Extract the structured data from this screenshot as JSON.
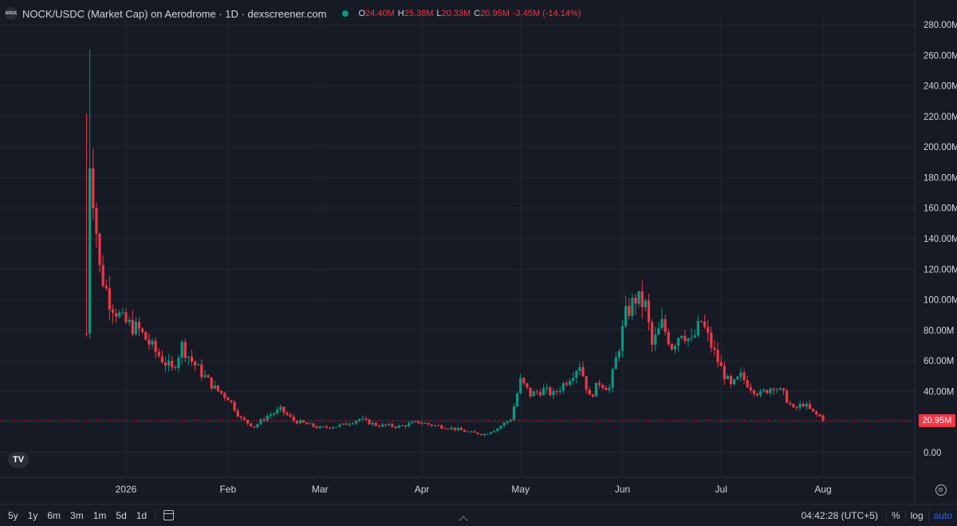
{
  "header": {
    "logo_text": "NOCK",
    "title": "NOCK/USDC (Market Cap) on Aerodrome · 1D · dexscreener.com",
    "ohlc": {
      "o_label": "O",
      "o_value": "24.40M",
      "h_label": "H",
      "h_value": "25.38M",
      "l_label": "L",
      "l_value": "20.33M",
      "c_label": "C",
      "c_value": "20.95M",
      "change": "-3.45M (-14.14%)"
    }
  },
  "colors": {
    "up": "#089981",
    "down": "#f23645",
    "background": "#161a25",
    "grid": "#222631",
    "text": "#d1d4dc"
  },
  "chart_data": {
    "type": "candlestick",
    "y_axis": {
      "min": 0,
      "max": 280,
      "unit": "M",
      "ticks": [
        0,
        20,
        40,
        60,
        80,
        100,
        120,
        140,
        160,
        180,
        200,
        220,
        240,
        260,
        280
      ],
      "tick_labels": [
        "0.00",
        "20.00M",
        "40.00M",
        "60.00M",
        "80.00M",
        "100.00M",
        "120.00M",
        "140.00M",
        "160.00M",
        "180.00M",
        "200.00M",
        "220.00M",
        "240.00M",
        "260.00M",
        "280.00M"
      ]
    },
    "x_axis": {
      "tick_labels": [
        "2026",
        "Feb",
        "Mar",
        "Apr",
        "May",
        "Jun",
        "Jul",
        "Aug"
      ],
      "tick_dates": [
        "2026-01-01",
        "2026-02-01",
        "2026-03-01",
        "2026-04-01",
        "2026-05-01",
        "2026-06-01",
        "2026-07-01",
        "2026-08-01"
      ]
    },
    "grid": true,
    "last_price_label": "20.95M",
    "last_price": 20.95,
    "series_points": [
      {
        "date": "2025-12-20",
        "close": 78
      },
      {
        "date": "2025-12-21",
        "close": 193
      },
      {
        "date": "2025-12-22",
        "close": 170
      },
      {
        "date": "2025-12-24",
        "close": 120
      },
      {
        "date": "2025-12-27",
        "close": 100
      },
      {
        "date": "2025-12-31",
        "close": 86
      },
      {
        "date": "2026-01-05",
        "close": 80
      },
      {
        "date": "2026-01-10",
        "close": 66
      },
      {
        "date": "2026-01-15",
        "close": 54
      },
      {
        "date": "2026-01-18",
        "close": 70
      },
      {
        "date": "2026-01-21",
        "close": 60
      },
      {
        "date": "2026-01-24",
        "close": 52
      },
      {
        "date": "2026-01-28",
        "close": 42
      },
      {
        "date": "2026-02-01",
        "close": 36
      },
      {
        "date": "2026-02-05",
        "close": 22
      },
      {
        "date": "2026-02-09",
        "close": 17
      },
      {
        "date": "2026-02-13",
        "close": 24
      },
      {
        "date": "2026-02-17",
        "close": 28
      },
      {
        "date": "2026-02-21",
        "close": 21
      },
      {
        "date": "2026-03-01",
        "close": 16
      },
      {
        "date": "2026-03-08",
        "close": 18
      },
      {
        "date": "2026-03-13",
        "close": 22
      },
      {
        "date": "2026-03-18",
        "close": 18
      },
      {
        "date": "2026-03-25",
        "close": 17
      },
      {
        "date": "2026-03-31",
        "close": 20
      },
      {
        "date": "2026-04-04",
        "close": 18
      },
      {
        "date": "2026-04-10",
        "close": 16
      },
      {
        "date": "2026-04-16",
        "close": 13
      },
      {
        "date": "2026-04-20",
        "close": 12
      },
      {
        "date": "2026-04-24",
        "close": 16
      },
      {
        "date": "2026-04-28",
        "close": 22
      },
      {
        "date": "2026-05-01",
        "close": 47
      },
      {
        "date": "2026-05-04",
        "close": 38
      },
      {
        "date": "2026-05-08",
        "close": 41
      },
      {
        "date": "2026-05-11",
        "close": 38
      },
      {
        "date": "2026-05-15",
        "close": 47
      },
      {
        "date": "2026-05-19",
        "close": 58
      },
      {
        "date": "2026-05-22",
        "close": 36
      },
      {
        "date": "2026-05-25",
        "close": 46
      },
      {
        "date": "2026-05-28",
        "close": 42
      },
      {
        "date": "2026-05-31",
        "close": 70
      },
      {
        "date": "2026-06-02",
        "close": 90
      },
      {
        "date": "2026-06-05",
        "close": 101
      },
      {
        "date": "2026-06-08",
        "close": 96
      },
      {
        "date": "2026-06-10",
        "close": 70
      },
      {
        "date": "2026-06-13",
        "close": 84
      },
      {
        "date": "2026-06-16",
        "close": 70
      },
      {
        "date": "2026-06-19",
        "close": 80
      },
      {
        "date": "2026-06-22",
        "close": 72
      },
      {
        "date": "2026-06-25",
        "close": 86
      },
      {
        "date": "2026-06-28",
        "close": 70
      },
      {
        "date": "2026-07-01",
        "close": 55
      },
      {
        "date": "2026-07-04",
        "close": 43
      },
      {
        "date": "2026-07-07",
        "close": 50
      },
      {
        "date": "2026-07-10",
        "close": 43
      },
      {
        "date": "2026-07-13",
        "close": 38
      },
      {
        "date": "2026-07-17",
        "close": 44
      },
      {
        "date": "2026-07-20",
        "close": 38
      },
      {
        "date": "2026-07-23",
        "close": 28
      },
      {
        "date": "2026-07-26",
        "close": 32
      },
      {
        "date": "2026-07-29",
        "close": 26
      },
      {
        "date": "2026-07-31",
        "close": 23.5
      },
      {
        "date": "2026-08-01",
        "close": 20.95
      }
    ]
  },
  "toolbar": {
    "ranges": [
      "5y",
      "1y",
      "6m",
      "3m",
      "1m",
      "5d",
      "1d"
    ],
    "clock": "04:42:28 (UTC+5)",
    "percent_label": "%",
    "log_label": "log",
    "auto_label": "auto"
  }
}
